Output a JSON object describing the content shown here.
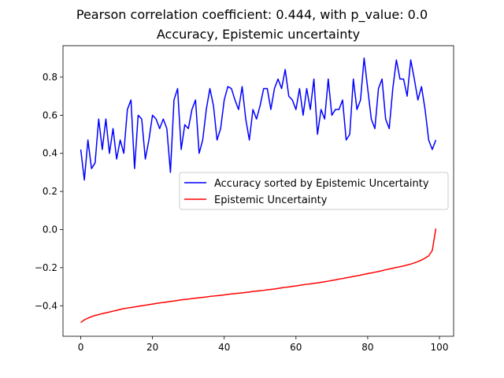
{
  "chart_data": {
    "type": "line",
    "title": "Pearson correlation coefficient: 0.444, with p_value: 0.0",
    "subtitle": "Accuracy, Epistemic uncertainty",
    "xlabel": "",
    "ylabel": "",
    "xlim": [
      -4.95,
      103.95
    ],
    "ylim": [
      -0.56,
      0.965
    ],
    "xticks": [
      0,
      20,
      40,
      60,
      80,
      100
    ],
    "yticks": [
      -0.4,
      -0.2,
      0.0,
      0.2,
      0.4,
      0.6,
      0.8
    ],
    "xtick_labels": [
      "0",
      "20",
      "40",
      "60",
      "80",
      "100"
    ],
    "ytick_labels": [
      "−0.4",
      "−0.2",
      "0.0",
      "0.2",
      "0.4",
      "0.6",
      "0.8"
    ],
    "grid": false,
    "legend_position": "center-right",
    "series": [
      {
        "name": "Accuracy sorted by Epistemic Uncertainty",
        "color": "#0000ff",
        "x_start": 0,
        "values": [
          0.42,
          0.26,
          0.47,
          0.32,
          0.35,
          0.58,
          0.42,
          0.58,
          0.4,
          0.53,
          0.37,
          0.47,
          0.4,
          0.63,
          0.68,
          0.32,
          0.6,
          0.58,
          0.37,
          0.47,
          0.6,
          0.58,
          0.53,
          0.58,
          0.53,
          0.3,
          0.68,
          0.74,
          0.42,
          0.55,
          0.53,
          0.63,
          0.68,
          0.4,
          0.47,
          0.63,
          0.74,
          0.65,
          0.47,
          0.53,
          0.68,
          0.75,
          0.74,
          0.68,
          0.63,
          0.75,
          0.58,
          0.47,
          0.63,
          0.58,
          0.65,
          0.74,
          0.74,
          0.63,
          0.74,
          0.79,
          0.74,
          0.84,
          0.7,
          0.68,
          0.63,
          0.74,
          0.6,
          0.74,
          0.63,
          0.79,
          0.5,
          0.63,
          0.58,
          0.79,
          0.6,
          0.63,
          0.63,
          0.68,
          0.47,
          0.5,
          0.79,
          0.63,
          0.68,
          0.9,
          0.74,
          0.58,
          0.53,
          0.74,
          0.79,
          0.58,
          0.53,
          0.74,
          0.89,
          0.79,
          0.79,
          0.7,
          0.89,
          0.79,
          0.68,
          0.75,
          0.63,
          0.47,
          0.42,
          0.47
        ]
      },
      {
        "name": "Epistemic Uncertainty",
        "color": "#ff0000",
        "x_start": 0,
        "values": [
          -0.488,
          -0.474,
          -0.465,
          -0.457,
          -0.451,
          -0.446,
          -0.441,
          -0.437,
          -0.433,
          -0.428,
          -0.424,
          -0.419,
          -0.415,
          -0.412,
          -0.409,
          -0.406,
          -0.403,
          -0.4,
          -0.397,
          -0.394,
          -0.391,
          -0.388,
          -0.385,
          -0.383,
          -0.38,
          -0.377,
          -0.375,
          -0.372,
          -0.369,
          -0.367,
          -0.365,
          -0.362,
          -0.36,
          -0.358,
          -0.356,
          -0.354,
          -0.351,
          -0.349,
          -0.347,
          -0.345,
          -0.343,
          -0.34,
          -0.338,
          -0.336,
          -0.334,
          -0.332,
          -0.33,
          -0.328,
          -0.325,
          -0.323,
          -0.321,
          -0.319,
          -0.316,
          -0.314,
          -0.312,
          -0.309,
          -0.306,
          -0.303,
          -0.301,
          -0.298,
          -0.296,
          -0.293,
          -0.29,
          -0.287,
          -0.285,
          -0.282,
          -0.28,
          -0.277,
          -0.274,
          -0.271,
          -0.267,
          -0.264,
          -0.26,
          -0.257,
          -0.253,
          -0.25,
          -0.246,
          -0.243,
          -0.239,
          -0.235,
          -0.231,
          -0.228,
          -0.224,
          -0.22,
          -0.216,
          -0.211,
          -0.207,
          -0.203,
          -0.199,
          -0.195,
          -0.191,
          -0.186,
          -0.181,
          -0.175,
          -0.168,
          -0.16,
          -0.15,
          -0.138,
          -0.11,
          0.005
        ]
      }
    ]
  }
}
